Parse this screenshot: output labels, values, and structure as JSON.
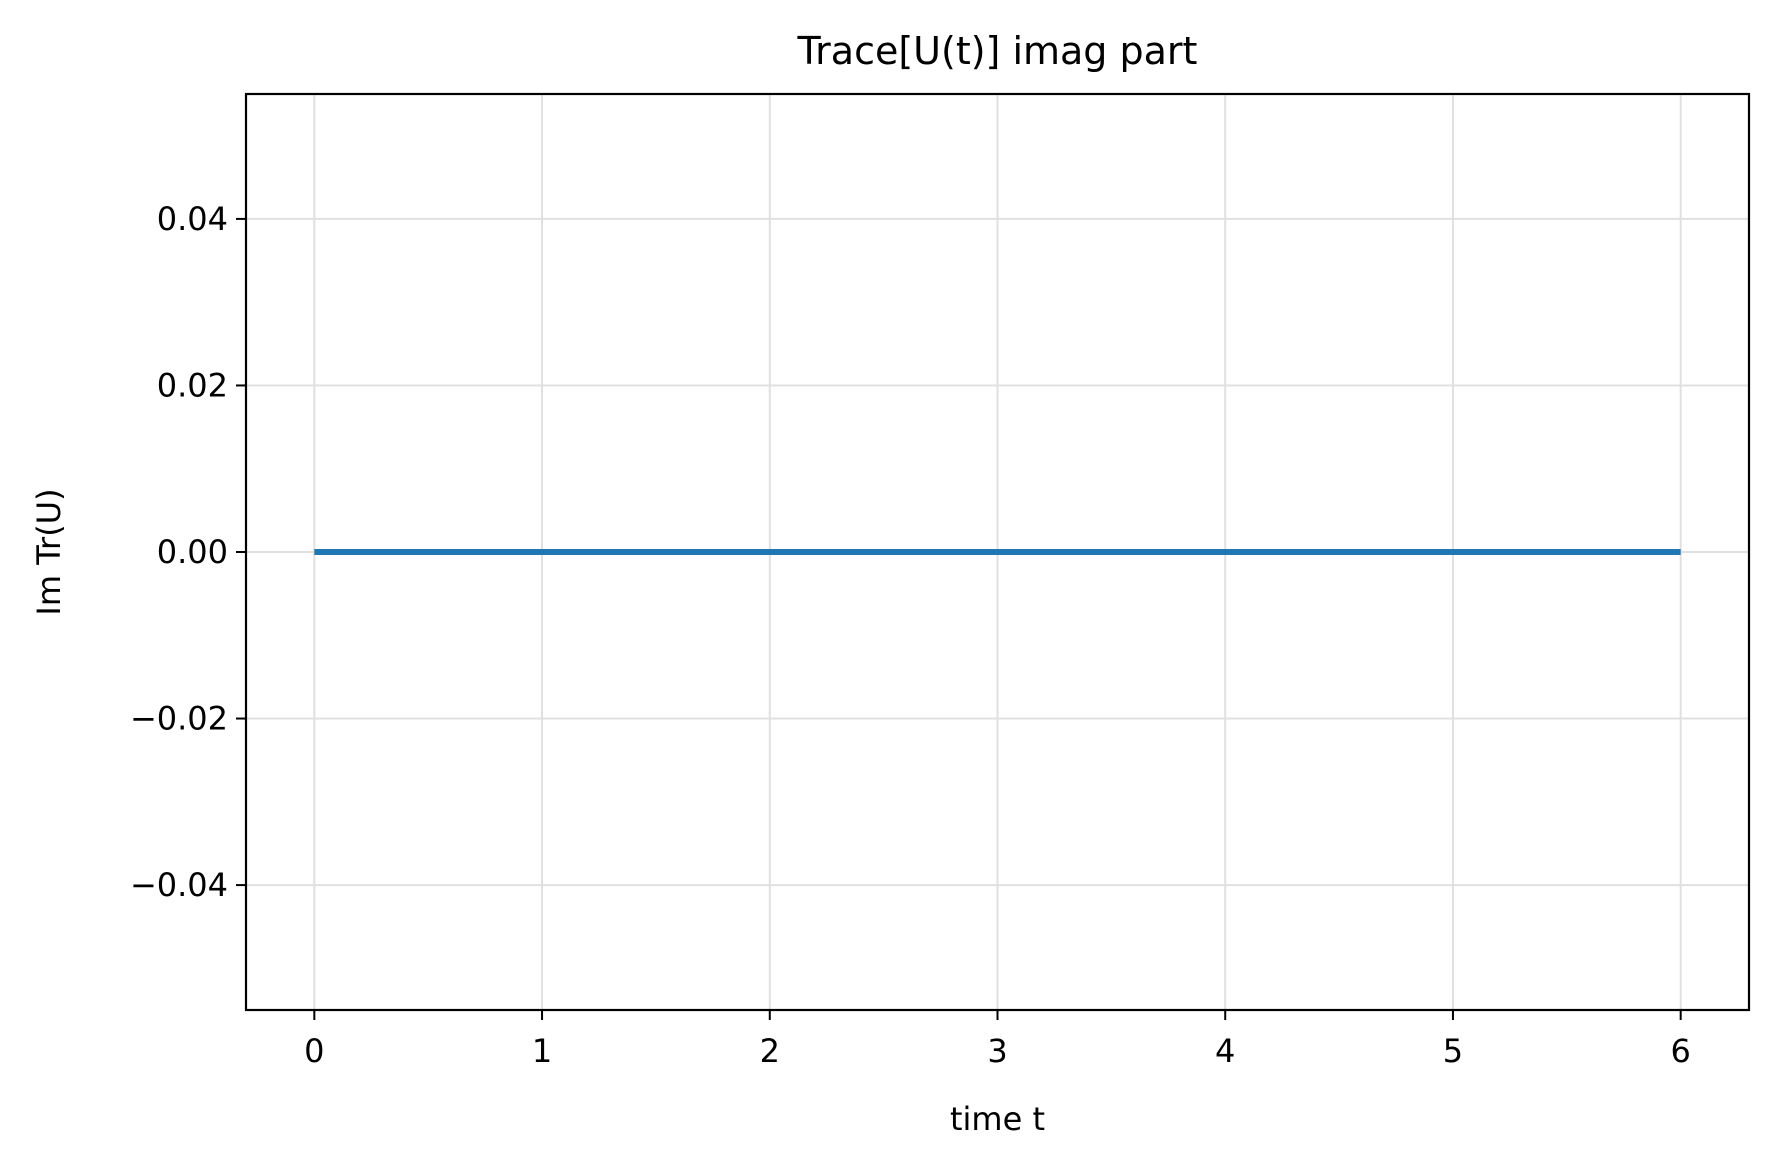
{
  "chart_data": {
    "type": "line",
    "title": "Trace[U(t)] imag part",
    "xlabel": "time t",
    "ylabel": "Im Tr(U)",
    "xlim": [
      -0.3,
      6.3
    ],
    "ylim": [
      -0.055,
      0.055
    ],
    "x_ticks": [
      0,
      1,
      2,
      3,
      4,
      5,
      6
    ],
    "y_ticks": [
      -0.04,
      -0.02,
      0.0,
      0.02,
      0.04
    ],
    "x_tick_labels": [
      "0",
      "1",
      "2",
      "3",
      "4",
      "5",
      "6"
    ],
    "y_tick_labels": [
      "−0.04",
      "−0.02",
      "0.00",
      "0.02",
      "0.04"
    ],
    "grid": true,
    "series": [
      {
        "color": "#1f77b4",
        "x": [
          0,
          1,
          2,
          3,
          4,
          5,
          6
        ],
        "y": [
          0,
          0,
          0,
          0,
          0,
          0,
          0
        ]
      }
    ],
    "colors": {
      "line": "#1f77b4",
      "grid": "#e0e0e0",
      "axes": "#000000"
    }
  }
}
